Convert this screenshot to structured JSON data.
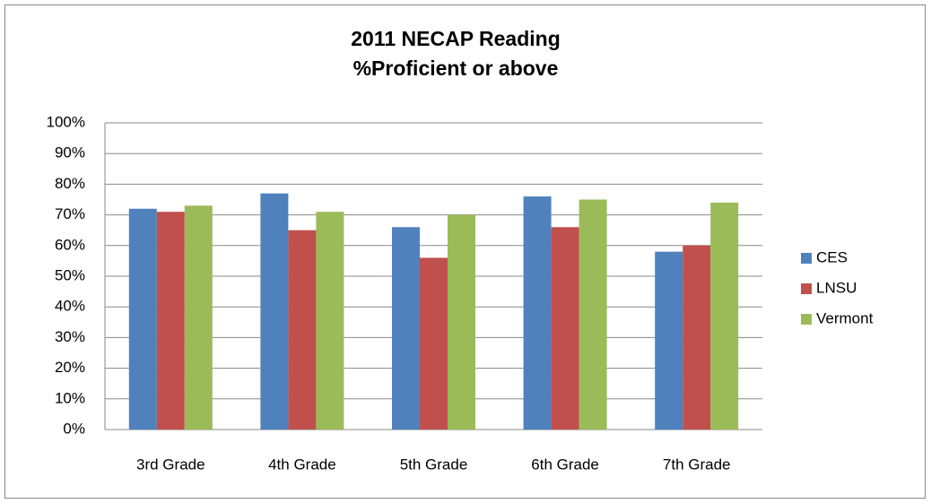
{
  "chart_data": {
    "type": "bar",
    "title": [
      "2011 NECAP Reading",
      "%Proficient or above"
    ],
    "categories": [
      "3rd Grade",
      "4th Grade",
      "5th Grade",
      "6th Grade",
      "7th Grade"
    ],
    "series": [
      {
        "name": "CES",
        "color": "#4f81bd",
        "values": [
          72,
          77,
          66,
          76,
          58
        ]
      },
      {
        "name": "LNSU",
        "color": "#c0504d",
        "values": [
          71,
          65,
          56,
          66,
          60
        ]
      },
      {
        "name": "Vermont",
        "color": "#9bbb59",
        "values": [
          73,
          71,
          70,
          75,
          74
        ]
      }
    ],
    "ylim": [
      0,
      100
    ],
    "yticks": [
      {
        "value": 0,
        "label": "0%"
      },
      {
        "value": 10,
        "label": "10%"
      },
      {
        "value": 20,
        "label": "20%"
      },
      {
        "value": 30,
        "label": "30%"
      },
      {
        "value": 40,
        "label": "40%"
      },
      {
        "value": 50,
        "label": "50%"
      },
      {
        "value": 60,
        "label": "60%"
      },
      {
        "value": 70,
        "label": "70%"
      },
      {
        "value": 80,
        "label": "80%"
      },
      {
        "value": 90,
        "label": "90%"
      },
      {
        "value": 100,
        "label": "100%"
      }
    ],
    "grid": true,
    "legend": "right"
  }
}
